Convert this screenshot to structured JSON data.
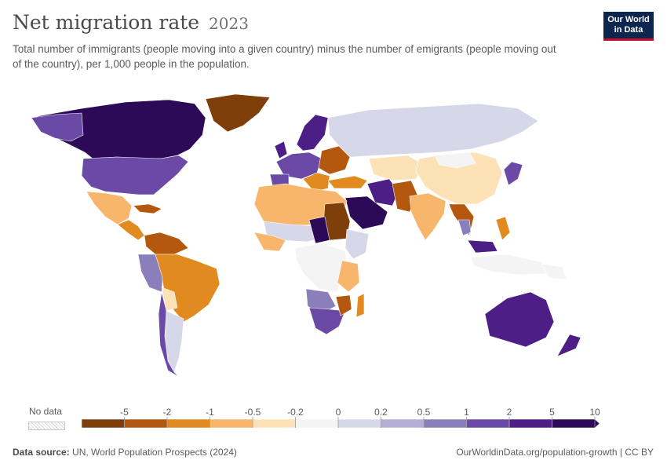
{
  "header": {
    "title": "Net migration rate",
    "year": "2023",
    "subtitle": "Total number of immigrants (people moving into a given country) minus the number of emigrants (people moving out of the country), per 1,000 people in the population."
  },
  "logo": {
    "line1": "Our World",
    "line2": "in Data"
  },
  "legend": {
    "no_data_label": "No data",
    "ticks": [
      "-5",
      "-2",
      "-1",
      "-0.5",
      "-0.2",
      "0",
      "0.2",
      "0.5",
      "1",
      "2",
      "5",
      "10"
    ],
    "colors": [
      "#7f3f0a",
      "#b3580e",
      "#e08a1f",
      "#f7b66b",
      "#fde2b8",
      "#f4f4f4",
      "#d6d8ea",
      "#b3aed4",
      "#8a7ebb",
      "#6b4aa5",
      "#4d1f86",
      "#2c0a57"
    ]
  },
  "footer": {
    "source_label": "Data source:",
    "source": "UN, World Population Prospects (2024)",
    "url": "OurWorldinData.org/population-growth | CC BY"
  },
  "colors": {
    "ocean": "#ffffff",
    "border": "#ffffff",
    "dark_purple": "#2c0a57",
    "purple": "#4d1f86",
    "mid_purple": "#6b4aa5",
    "light_purple": "#8a7ebb",
    "lavender": "#b3aed4",
    "pale_lavender": "#d6d8ea",
    "near_zero": "#f4f4f4",
    "pale_orange": "#fde2b8",
    "light_orange": "#f7b66b",
    "orange": "#e08a1f",
    "dark_orange": "#b3580e",
    "brown": "#7f3f0a"
  }
}
